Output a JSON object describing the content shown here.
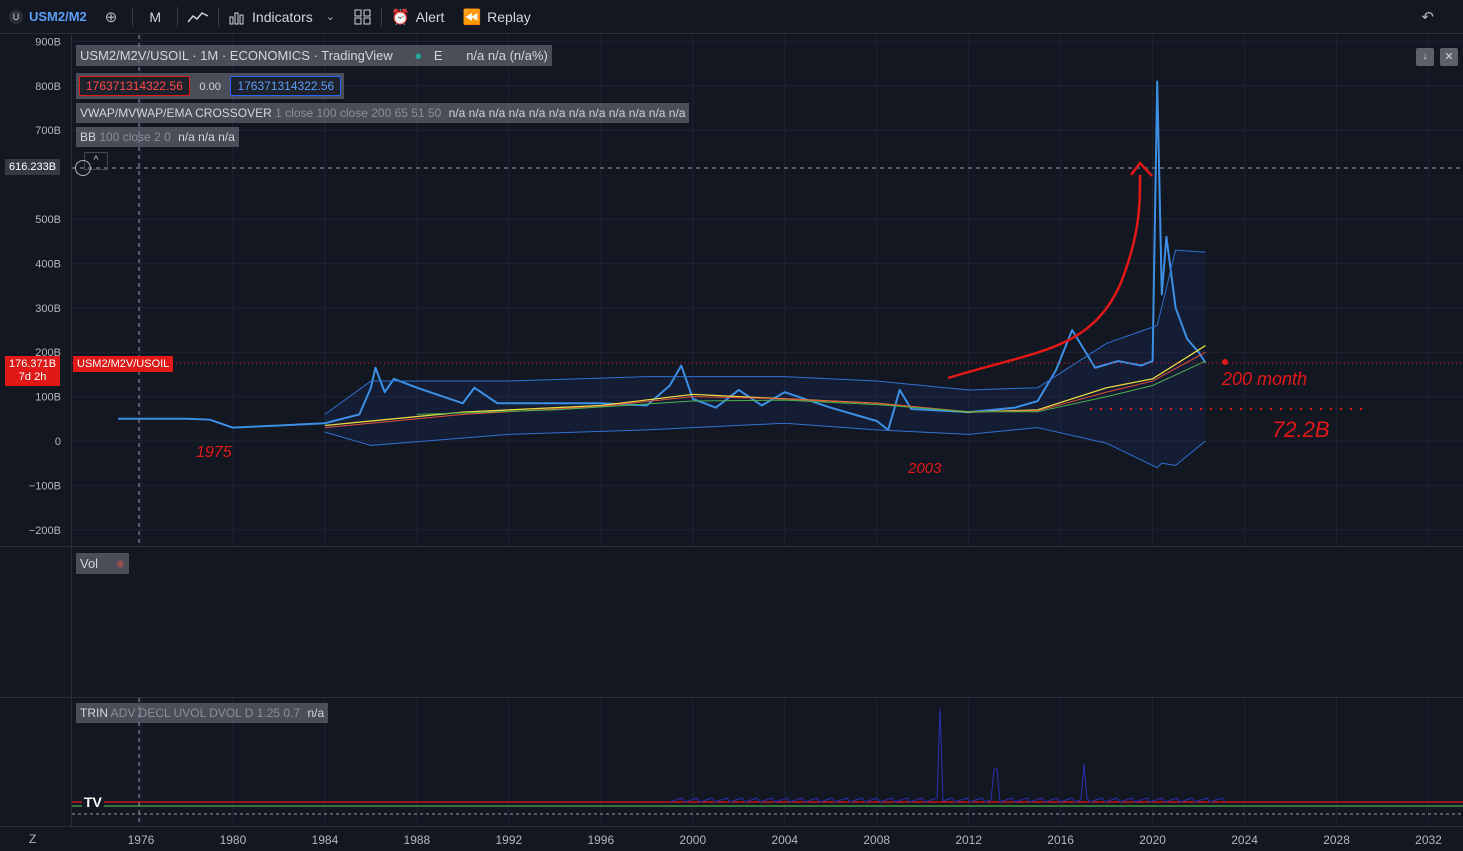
{
  "toolbar": {
    "symbol_badge": "U",
    "symbol": "USM2/M2",
    "interval": "M",
    "indicators_label": "Indicators",
    "alert_label": "Alert",
    "replay_label": "Replay"
  },
  "legend": {
    "title": "USM2/M2V/USOIL · 1M · ECONOMICS · TradingView",
    "title_flag": "E",
    "title_values": "n/a  n/a  (n/a%)",
    "bid": "176371314322.56",
    "spread": "0.00",
    "ask": "176371314322.56",
    "ind1_name": "VWAP/MVWAP/EMA CROSSOVER",
    "ind1_params": "1 close 100 close 200 65 51 50",
    "ind1_values": "n/a n/a n/a n/a n/a n/a n/a n/a n/a n/a n/a n/a",
    "ind2_name": "BB",
    "ind2_params": "100 close 2 0",
    "ind2_values": "n/a  n/a  n/a",
    "vol_label": "Vol",
    "trin_name": "TRIN",
    "trin_params": "ADV DECL UVOL DVOL D 1.25 0.7",
    "trin_value": "n/a"
  },
  "price_axis": {
    "labels": [
      "900B",
      "800B",
      "700B",
      "500B",
      "400B",
      "300B",
      "200B",
      "100B",
      "0",
      "−100B",
      "−200B"
    ],
    "crosshair_value": "616.233B",
    "last_value": "176.371B",
    "last_countdown": "7d 2h",
    "series_tag": "USM2/M2V/USOIL"
  },
  "time_axis": {
    "labels": [
      "1976",
      "1980",
      "1984",
      "1988",
      "1992",
      "1996",
      "2000",
      "2004",
      "2008",
      "2012",
      "2016",
      "2020",
      "2024",
      "2028",
      "2032"
    ],
    "corner": "Z"
  },
  "annotations": {
    "year_1975": "1975",
    "year_2003": "2003",
    "label_200_month": "200 month",
    "label_72b": "72.2B"
  },
  "colors": {
    "background": "#131722",
    "price_line": "#3d8fe3",
    "bollinger": "#2f6fd0",
    "ema_yellow": "#e8d844",
    "ema_red": "#e0503c",
    "ema_green": "#4caf50",
    "annotation": "#e01818",
    "last_price_tag": "#e01818"
  },
  "chart_data": {
    "type": "line",
    "title": "USM2/M2V/USOIL · 1M · ECONOMICS · TradingView",
    "ylim": [
      -230,
      920
    ],
    "x_range": [
      1973,
      2033.5
    ],
    "series": [
      {
        "name": "USM2/M2V/USOIL",
        "x": [
          1975.0,
          1978.0,
          1979.0,
          1980.0,
          1982.0,
          1984.0,
          1985.5,
          1986.0,
          1986.2,
          1986.6,
          1987.0,
          1988.0,
          1990.0,
          1990.5,
          1991.5,
          1993.0,
          1996.0,
          1998.0,
          1999.0,
          1999.5,
          2000.0,
          2001.0,
          2002.0,
          2003.0,
          2004.0,
          2006.0,
          2007.0,
          2008.0,
          2008.5,
          2009.0,
          2009.5,
          2012.0,
          2014.0,
          2015.0,
          2015.8,
          2016.5,
          2017.5,
          2018.5,
          2019.5,
          2020.0,
          2020.2,
          2020.4,
          2020.6,
          2021.0,
          2021.5,
          2022.0,
          2022.3
        ],
        "values": [
          50,
          50,
          48,
          30,
          35,
          40,
          60,
          120,
          165,
          110,
          140,
          120,
          85,
          120,
          85,
          85,
          85,
          80,
          125,
          170,
          95,
          75,
          115,
          80,
          110,
          75,
          60,
          45,
          25,
          115,
          72,
          65,
          75,
          90,
          160,
          250,
          165,
          180,
          170,
          180,
          810,
          330,
          460,
          300,
          230,
          200,
          176
        ]
      },
      {
        "name": "BB upper",
        "x": [
          1984.0,
          1986.0,
          1992.0,
          1998.0,
          2004.0,
          2008.0,
          2012.0,
          2015.0,
          2018.0,
          2020.2,
          2021.0,
          2022.3
        ],
        "values": [
          60,
          135,
          135,
          145,
          145,
          135,
          115,
          120,
          220,
          260,
          430,
          425
        ]
      },
      {
        "name": "BB lower",
        "x": [
          1984.0,
          1986.0,
          1992.0,
          1998.0,
          2004.0,
          2008.0,
          2012.0,
          2015.0,
          2018.0,
          2020.2,
          2020.4,
          2021.0,
          2022.3
        ],
        "values": [
          20,
          -10,
          15,
          25,
          40,
          25,
          15,
          30,
          -5,
          -60,
          -50,
          -55,
          0
        ]
      },
      {
        "name": "EMA 1",
        "x": [
          1984.0,
          1990.0,
          1996.0,
          2000.0,
          2004.0,
          2008.0,
          2012.0,
          2015.0,
          2018.0,
          2020.0,
          2022.3
        ],
        "values": [
          35,
          65,
          80,
          105,
          95,
          85,
          65,
          70,
          120,
          140,
          215
        ]
      },
      {
        "name": "EMA 2",
        "x": [
          1984.0,
          1990.0,
          1996.0,
          2000.0,
          2004.0,
          2008.0,
          2012.0,
          2015.0,
          2018.0,
          2020.0,
          2022.3
        ],
        "values": [
          30,
          60,
          78,
          100,
          95,
          85,
          66,
          68,
          110,
          135,
          200
        ]
      },
      {
        "name": "EMA 3",
        "x": [
          1988.0,
          1994.0,
          2000.0,
          2004.0,
          2008.0,
          2012.0,
          2015.0,
          2018.0,
          2020.0,
          2022.3
        ],
        "values": [
          60,
          70,
          90,
          92,
          82,
          66,
          66,
          100,
          125,
          180
        ]
      }
    ]
  }
}
